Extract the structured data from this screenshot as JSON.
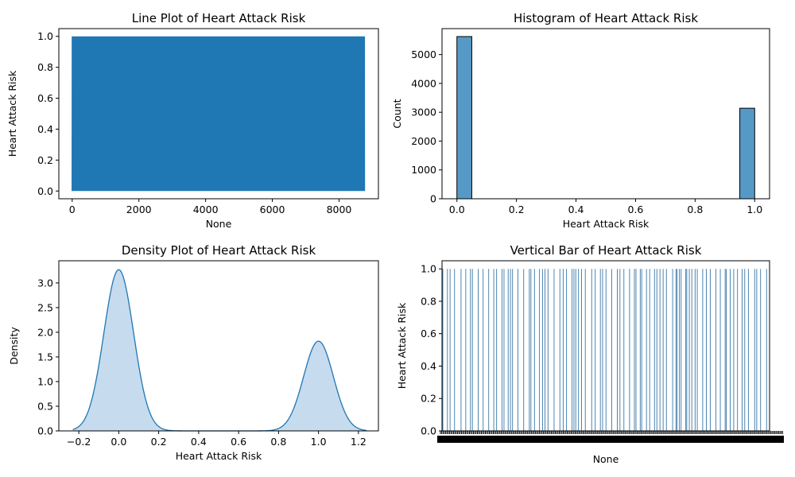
{
  "chart_data": [
    {
      "type": "line",
      "title": "Line Plot of Heart Attack Risk",
      "xlabel": "None",
      "ylabel": "Heart Attack Risk",
      "xlim": [
        -400,
        9180
      ],
      "ylim": [
        -0.05,
        1.05
      ],
      "xticks": [
        0,
        2000,
        4000,
        6000,
        8000
      ],
      "xtick_labels": [
        "0",
        "2000",
        "4000",
        "6000",
        "8000"
      ],
      "yticks": [
        0.0,
        0.2,
        0.4,
        0.6,
        0.8,
        1.0
      ],
      "ytick_labels": [
        "0.0",
        "0.2",
        "0.4",
        "0.6",
        "0.8",
        "1.0"
      ],
      "x_range": [
        0,
        8762
      ],
      "y_values_range": [
        0,
        1
      ],
      "n_points": 8763,
      "color": "#1f77b4",
      "grid": false
    },
    {
      "type": "bar",
      "title": "Histogram of Heart Attack Risk",
      "xlabel": "Heart Attack Risk",
      "ylabel": "Count",
      "xlim": [
        -0.05,
        1.05
      ],
      "ylim": [
        0,
        5900
      ],
      "xticks": [
        0.0,
        0.2,
        0.4,
        0.6,
        0.8,
        1.0
      ],
      "xtick_labels": [
        "0.0",
        "0.2",
        "0.4",
        "0.6",
        "0.8",
        "1.0"
      ],
      "yticks": [
        0,
        1000,
        2000,
        3000,
        4000,
        5000
      ],
      "ytick_labels": [
        "0",
        "1000",
        "2000",
        "3000",
        "4000",
        "5000"
      ],
      "bins": [
        {
          "x0": 0.0,
          "x1": 0.05,
          "count": 5624
        },
        {
          "x0": 0.95,
          "x1": 1.0,
          "count": 3139
        }
      ],
      "color": "#5799c6",
      "edgecolor": "#000000",
      "grid": false
    },
    {
      "type": "area",
      "title": "Density Plot of Heart Attack Risk",
      "xlabel": "Heart Attack Risk",
      "ylabel": "Density",
      "xlim": [
        -0.3,
        1.3
      ],
      "ylim": [
        0,
        3.45
      ],
      "xticks": [
        -0.2,
        0.0,
        0.2,
        0.4,
        0.6,
        0.8,
        1.0,
        1.2
      ],
      "xtick_labels": [
        "−0.2",
        "0.0",
        "0.2",
        "0.4",
        "0.6",
        "0.8",
        "1.0",
        "1.2"
      ],
      "yticks": [
        0.0,
        0.5,
        1.0,
        1.5,
        2.0,
        2.5,
        3.0
      ],
      "ytick_labels": [
        "0.0",
        "0.5",
        "1.0",
        "1.5",
        "2.0",
        "2.5",
        "3.0"
      ],
      "x_range": [
        -0.23,
        1.24
      ],
      "peaks": [
        {
          "x": 0.0,
          "density": 3.27
        },
        {
          "x": 1.0,
          "density": 1.82
        }
      ],
      "color": "#1f77b4",
      "fill_color": "#c6dbee",
      "grid": false
    },
    {
      "type": "bar",
      "title": "Vertical Bar of Heart Attack Risk",
      "xlabel": "None",
      "ylabel": "Heart Attack Risk",
      "ylim": [
        0,
        1.05
      ],
      "yticks": [
        0.0,
        0.2,
        0.4,
        0.6,
        0.8,
        1.0
      ],
      "ytick_labels": [
        "0.0",
        "0.2",
        "0.4",
        "0.6",
        "0.8",
        "1.0"
      ],
      "n_bars": 8763,
      "bar_values_range": [
        0,
        1
      ],
      "xtick_labels_overlapping": true,
      "color": "#3a78a8",
      "grid": false
    }
  ]
}
